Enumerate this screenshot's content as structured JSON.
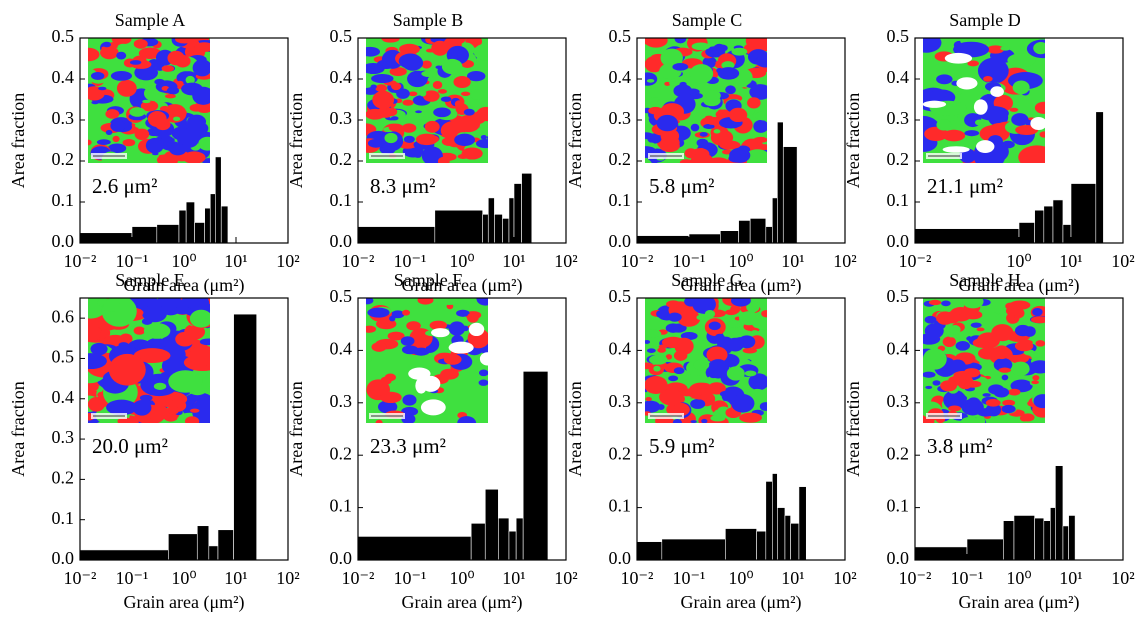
{
  "chart_data": [
    {
      "type": "histogram",
      "title": "Sample A",
      "annotation": "2.6 μm²",
      "x_label": "Grain area (μm²)",
      "y_label": "Area fraction",
      "color": "#000000",
      "x_log": true,
      "bins": [
        0.01,
        0.1,
        0.3,
        0.8,
        1.1,
        1.6,
        2.5,
        3.2,
        4,
        5.2,
        7
      ],
      "values": [
        0.025,
        0.04,
        0.045,
        0.08,
        0.1,
        0.05,
        0.085,
        0.12,
        0.21,
        0.09
      ],
      "xlim": [
        0.01,
        100
      ],
      "ylim": [
        0,
        0.5
      ],
      "xticks": [
        {
          "value": 0.01,
          "label": "10⁻²"
        },
        {
          "value": 0.1,
          "label": "10⁻¹"
        },
        {
          "value": 1,
          "label": "10⁰"
        },
        {
          "value": 10,
          "label": "10¹"
        },
        {
          "value": 100,
          "label": "10²"
        }
      ],
      "yticks": [
        {
          "value": 0,
          "label": "0.0"
        },
        {
          "value": 0.1,
          "label": "0.1"
        },
        {
          "value": 0.2,
          "label": "0.2"
        },
        {
          "value": 0.3,
          "label": "0.3"
        },
        {
          "value": 0.4,
          "label": "0.4"
        },
        {
          "value": 0.5,
          "label": "0.5"
        }
      ]
    },
    {
      "type": "histogram",
      "title": "Sample B",
      "annotation": "8.3 μm²",
      "x_label": "Grain area (μm²)",
      "y_label": "Area fraction",
      "color": "#000000",
      "x_log": true,
      "bins": [
        0.01,
        0.3,
        2.5,
        3.2,
        4.2,
        6,
        8,
        10,
        14,
        22
      ],
      "values": [
        0.04,
        0.08,
        0.07,
        0.11,
        0.07,
        0.06,
        0.11,
        0.145,
        0.17
      ],
      "xlim": [
        0.01,
        100
      ],
      "ylim": [
        0,
        0.5
      ],
      "xticks": [
        {
          "value": 0.01,
          "label": "10⁻²"
        },
        {
          "value": 0.1,
          "label": "10⁻¹"
        },
        {
          "value": 1,
          "label": "10⁰"
        },
        {
          "value": 10,
          "label": "10¹"
        },
        {
          "value": 100,
          "label": "10²"
        }
      ],
      "yticks": [
        {
          "value": 0,
          "label": "0.0"
        },
        {
          "value": 0.1,
          "label": "0.1"
        },
        {
          "value": 0.2,
          "label": "0.2"
        },
        {
          "value": 0.3,
          "label": "0.3"
        },
        {
          "value": 0.4,
          "label": "0.4"
        },
        {
          "value": 0.5,
          "label": "0.5"
        }
      ]
    },
    {
      "type": "histogram",
      "title": "Sample C",
      "annotation": "5.8 μm²",
      "x_label": "Grain area (μm²)",
      "y_label": "Area fraction",
      "color": "#000000",
      "x_log": true,
      "bins": [
        0.01,
        0.1,
        0.4,
        0.9,
        1.5,
        3,
        4,
        5,
        6.5,
        12
      ],
      "values": [
        0.018,
        0.022,
        0.03,
        0.055,
        0.06,
        0.04,
        0.11,
        0.295,
        0.235
      ],
      "xlim": [
        0.01,
        100
      ],
      "ylim": [
        0,
        0.5
      ],
      "xticks": [
        {
          "value": 0.01,
          "label": "10⁻²"
        },
        {
          "value": 0.1,
          "label": "10⁻¹"
        },
        {
          "value": 1,
          "label": "10⁰"
        },
        {
          "value": 10,
          "label": "10¹"
        },
        {
          "value": 100,
          "label": "10²"
        }
      ],
      "yticks": [
        {
          "value": 0,
          "label": "0.0"
        },
        {
          "value": 0.1,
          "label": "0.1"
        },
        {
          "value": 0.2,
          "label": "0.2"
        },
        {
          "value": 0.3,
          "label": "0.3"
        },
        {
          "value": 0.4,
          "label": "0.4"
        },
        {
          "value": 0.5,
          "label": "0.5"
        }
      ]
    },
    {
      "type": "histogram",
      "title": "Sample D",
      "annotation": "21.1 μm²",
      "x_label": "Grain area (μm²)",
      "y_label": "Area fraction",
      "color": "#000000",
      "x_log": true,
      "bins": [
        0.01,
        1,
        2,
        3,
        4.5,
        7,
        10,
        30,
        42
      ],
      "values": [
        0.035,
        0.05,
        0.08,
        0.09,
        0.105,
        0.045,
        0.145,
        0.32
      ],
      "xlim": [
        0.01,
        100
      ],
      "ylim": [
        0,
        0.5
      ],
      "xticks": [
        {
          "value": 0.01,
          "label": "10⁻²"
        },
        {
          "value": 1,
          "label": "10⁰"
        },
        {
          "value": 10,
          "label": "10¹"
        },
        {
          "value": 100,
          "label": "10²"
        }
      ],
      "yticks": [
        {
          "value": 0,
          "label": "0.0"
        },
        {
          "value": 0.1,
          "label": "0.1"
        },
        {
          "value": 0.2,
          "label": "0.2"
        },
        {
          "value": 0.3,
          "label": "0.3"
        },
        {
          "value": 0.4,
          "label": "0.4"
        },
        {
          "value": 0.5,
          "label": "0.5"
        }
      ]
    },
    {
      "type": "histogram",
      "title": "Sample E",
      "annotation": "20.0 μm²",
      "x_label": "Grain area (μm²)",
      "y_label": "Area fraction",
      "color": "#000000",
      "x_log": true,
      "bins": [
        0.01,
        0.5,
        1.8,
        3,
        4.5,
        9,
        25
      ],
      "values": [
        0.025,
        0.065,
        0.085,
        0.035,
        0.075,
        0.61
      ],
      "xlim": [
        0.01,
        100
      ],
      "ylim": [
        0,
        0.65
      ],
      "xticks": [
        {
          "value": 0.01,
          "label": "10⁻²"
        },
        {
          "value": 0.1,
          "label": "10⁻¹"
        },
        {
          "value": 1,
          "label": "10⁰"
        },
        {
          "value": 10,
          "label": "10¹"
        },
        {
          "value": 100,
          "label": "10²"
        }
      ],
      "yticks": [
        {
          "value": 0,
          "label": "0.0"
        },
        {
          "value": 0.1,
          "label": "0.1"
        },
        {
          "value": 0.2,
          "label": "0.2"
        },
        {
          "value": 0.3,
          "label": "0.3"
        },
        {
          "value": 0.4,
          "label": "0.4"
        },
        {
          "value": 0.5,
          "label": "0.5"
        },
        {
          "value": 0.6,
          "label": "0.6"
        }
      ]
    },
    {
      "type": "histogram",
      "title": "Sample F",
      "annotation": "23.3 μm²",
      "x_label": "Grain area (μm²)",
      "y_label": "Area fraction",
      "color": "#000000",
      "x_log": true,
      "bins": [
        0.01,
        1.5,
        2.8,
        5,
        8,
        11,
        15,
        45
      ],
      "values": [
        0.045,
        0.07,
        0.135,
        0.08,
        0.055,
        0.08,
        0.36
      ],
      "xlim": [
        0.01,
        100
      ],
      "ylim": [
        0,
        0.5
      ],
      "xticks": [
        {
          "value": 0.01,
          "label": "10⁻²"
        },
        {
          "value": 0.1,
          "label": "10⁻¹"
        },
        {
          "value": 1,
          "label": "10⁰"
        },
        {
          "value": 10,
          "label": "10¹"
        },
        {
          "value": 100,
          "label": "10²"
        }
      ],
      "yticks": [
        {
          "value": 0,
          "label": "0.0"
        },
        {
          "value": 0.1,
          "label": "0.1"
        },
        {
          "value": 0.2,
          "label": "0.2"
        },
        {
          "value": 0.3,
          "label": "0.3"
        },
        {
          "value": 0.4,
          "label": "0.4"
        },
        {
          "value": 0.5,
          "label": "0.5"
        }
      ]
    },
    {
      "type": "histogram",
      "title": "Sample G",
      "annotation": "5.9 μm²",
      "x_label": "Grain area (μm²)",
      "y_label": "Area fraction",
      "color": "#000000",
      "x_log": true,
      "bins": [
        0.01,
        0.03,
        0.5,
        2,
        3,
        4,
        5,
        7,
        9,
        13,
        18
      ],
      "values": [
        0.035,
        0.04,
        0.06,
        0.055,
        0.15,
        0.165,
        0.1,
        0.085,
        0.07,
        0.14
      ],
      "xlim": [
        0.01,
        100
      ],
      "ylim": [
        0,
        0.5
      ],
      "xticks": [
        {
          "value": 0.01,
          "label": "10⁻²"
        },
        {
          "value": 0.1,
          "label": "10⁻¹"
        },
        {
          "value": 1,
          "label": "10⁰"
        },
        {
          "value": 10,
          "label": "10¹"
        },
        {
          "value": 100,
          "label": "10²"
        }
      ],
      "yticks": [
        {
          "value": 0,
          "label": "0.0"
        },
        {
          "value": 0.1,
          "label": "0.1"
        },
        {
          "value": 0.2,
          "label": "0.2"
        },
        {
          "value": 0.3,
          "label": "0.3"
        },
        {
          "value": 0.4,
          "label": "0.4"
        },
        {
          "value": 0.5,
          "label": "0.5"
        }
      ]
    },
    {
      "type": "histogram",
      "title": "Sample H",
      "annotation": "3.8 μm²",
      "x_label": "Grain area (μm²)",
      "y_label": "Area fraction",
      "color": "#000000",
      "x_log": true,
      "bins": [
        0.01,
        0.1,
        0.5,
        0.8,
        2,
        3,
        4,
        5,
        7,
        9,
        12
      ],
      "values": [
        0.025,
        0.04,
        0.075,
        0.085,
        0.08,
        0.075,
        0.1,
        0.18,
        0.065,
        0.085
      ],
      "xlim": [
        0.01,
        100
      ],
      "ylim": [
        0,
        0.5
      ],
      "xticks": [
        {
          "value": 0.01,
          "label": "10⁻²"
        },
        {
          "value": 0.1,
          "label": "10⁻¹"
        },
        {
          "value": 1,
          "label": "10⁰"
        },
        {
          "value": 10,
          "label": "10¹"
        },
        {
          "value": 100,
          "label": "10²"
        }
      ],
      "yticks": [
        {
          "value": 0,
          "label": "0.0"
        },
        {
          "value": 0.1,
          "label": "0.1"
        },
        {
          "value": 0.2,
          "label": "0.2"
        },
        {
          "value": 0.3,
          "label": "0.3"
        },
        {
          "value": 0.4,
          "label": "0.4"
        },
        {
          "value": 0.5,
          "label": "0.5"
        }
      ]
    }
  ]
}
